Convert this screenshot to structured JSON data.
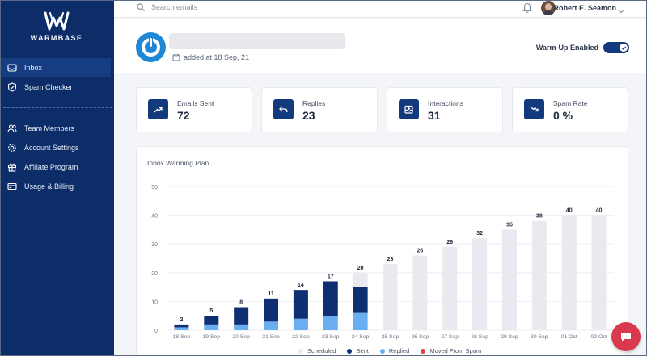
{
  "sidebar": {
    "logo_text": "WARMBASE",
    "items": [
      {
        "label": "Inbox",
        "icon": "inbox-icon",
        "active": true
      },
      {
        "label": "Spam Checker",
        "icon": "shield-icon",
        "active": false
      },
      {
        "label": "Team Members",
        "icon": "users-icon",
        "active": false
      },
      {
        "label": "Account Settings",
        "icon": "gear-icon",
        "active": false
      },
      {
        "label": "Affiliate Program",
        "icon": "gift-icon",
        "active": false
      },
      {
        "label": "Usage & Billing",
        "icon": "credit-card-icon",
        "active": false
      }
    ]
  },
  "header": {
    "search_placeholder": "Search emails",
    "user_name": "Robert E. Seamon"
  },
  "account": {
    "added_text": "added at 18 Sep, 21",
    "warmup_label": "Warm-Up Enabled",
    "warmup_enabled": true
  },
  "stats": [
    {
      "label": "Emails Sent",
      "value": "72",
      "icon": "trend-up-icon"
    },
    {
      "label": "Replies",
      "value": "23",
      "icon": "reply-icon"
    },
    {
      "label": "Interactions",
      "value": "31",
      "icon": "inbox-tray-icon"
    },
    {
      "label": "Spam Rate",
      "value": "0 %",
      "icon": "trend-down-icon"
    }
  ],
  "chart_panel": {
    "title": "Inbox Warming Plan"
  },
  "colors": {
    "sidebar": "#0d2d69",
    "scheduled": "#e8eaef",
    "sent": "#0f2f73",
    "replied": "#6aaef2",
    "moved_from_spam": "#e53e4d"
  },
  "chart_data": {
    "type": "bar",
    "stacked": true,
    "title": "Inbox Warming Plan",
    "categories": [
      "18 Sep",
      "19 Sep",
      "20 Sep",
      "21 Sep",
      "22 Sep",
      "23 Sep",
      "24 Sep",
      "25 Sep",
      "26 Sep",
      "27 Sep",
      "28 Sep",
      "29 Sep",
      "30 Sep",
      "01 Oct",
      "02 Oct"
    ],
    "totals": [
      2,
      5,
      8,
      11,
      14,
      17,
      20,
      23,
      26,
      29,
      32,
      35,
      38,
      40,
      40
    ],
    "series": [
      {
        "name": "Scheduled",
        "values": [
          0,
          0,
          0,
          0,
          0,
          0,
          5,
          23,
          26,
          29,
          32,
          35,
          38,
          40,
          40
        ]
      },
      {
        "name": "Sent",
        "values": [
          1,
          3,
          6,
          8,
          10,
          12,
          9,
          0,
          0,
          0,
          0,
          0,
          0,
          0,
          0
        ]
      },
      {
        "name": "Replied",
        "values": [
          1,
          2,
          2,
          3,
          4,
          5,
          6,
          0,
          0,
          0,
          0,
          0,
          0,
          0,
          0
        ]
      },
      {
        "name": "Moved From Spam",
        "values": [
          0,
          0,
          0,
          0,
          0,
          0,
          0,
          0,
          0,
          0,
          0,
          0,
          0,
          0,
          0
        ]
      }
    ],
    "yticks": [
      "0",
      "10",
      "20",
      "30",
      "40",
      "50"
    ],
    "ylim": [
      0,
      50
    ],
    "grid": true,
    "legend": "bottom"
  }
}
